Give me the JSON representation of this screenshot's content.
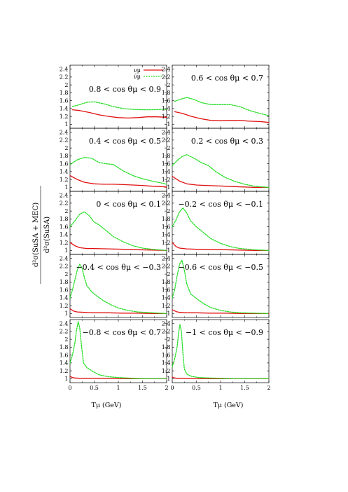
{
  "figure": {
    "ylabel_numerator": "d²σ(SuSA + MEC)",
    "ylabel_denominator": "d²σ(SuSA)",
    "xlabel": "Tμ (GeV)"
  },
  "legend": [
    {
      "label": "νμ",
      "color": "#e01010",
      "style": "solid"
    },
    {
      "label": "ν̄μ",
      "color": "#22dd22",
      "style": "dotted"
    }
  ],
  "chart_data": [
    {
      "type": "line",
      "panel": "0.8 < cos θμ < 0.9",
      "xlim": [
        0,
        2
      ],
      "ylim": [
        0.9,
        2.5
      ],
      "xlabel": "",
      "ylabel": "",
      "yticks": [
        "1",
        "1.2",
        "1.4",
        "1.6",
        "1.8",
        "2",
        "2.2",
        "2.4"
      ],
      "xticks": [],
      "series": [
        {
          "name": "νμ",
          "color": "#e01010",
          "dash": "",
          "x": [
            0.05,
            0.2,
            0.4,
            0.6,
            0.8,
            1.0,
            1.2,
            1.4,
            1.6,
            1.8,
            2.0
          ],
          "y": [
            1.37,
            1.35,
            1.3,
            1.24,
            1.2,
            1.17,
            1.16,
            1.17,
            1.19,
            1.19,
            1.18
          ]
        },
        {
          "name": "ν̄μ",
          "color": "#22dd22",
          "dash": "2,1.5",
          "x": [
            0.05,
            0.2,
            0.35,
            0.5,
            0.7,
            0.9,
            1.1,
            1.3,
            1.5,
            1.7,
            1.9,
            2.0
          ],
          "y": [
            1.45,
            1.5,
            1.56,
            1.57,
            1.52,
            1.45,
            1.4,
            1.38,
            1.37,
            1.37,
            1.38,
            1.38
          ]
        }
      ]
    },
    {
      "type": "line",
      "panel": "0.6 < cos θμ < 0.7",
      "xlim": [
        0,
        2
      ],
      "ylim": [
        0.9,
        2.5
      ],
      "xlabel": "",
      "ylabel": "",
      "yticks": [
        "1",
        "1.2",
        "1.4",
        "1.6",
        "1.8",
        "2",
        "2.2",
        "2.4"
      ],
      "xticks": [],
      "series": [
        {
          "name": "νμ",
          "color": "#e01010",
          "dash": "",
          "x": [
            0.05,
            0.2,
            0.4,
            0.6,
            0.8,
            1.0,
            1.2,
            1.4,
            1.6,
            1.8,
            2.0
          ],
          "y": [
            1.32,
            1.28,
            1.2,
            1.14,
            1.1,
            1.09,
            1.1,
            1.1,
            1.08,
            1.07,
            1.05
          ]
        },
        {
          "name": "ν̄μ",
          "color": "#22dd22",
          "dash": "2,1.5",
          "x": [
            0.05,
            0.15,
            0.3,
            0.45,
            0.6,
            0.8,
            1.0,
            1.2,
            1.4,
            1.6,
            1.8,
            2.0
          ],
          "y": [
            1.58,
            1.63,
            1.68,
            1.63,
            1.55,
            1.5,
            1.5,
            1.5,
            1.45,
            1.35,
            1.28,
            1.22
          ]
        }
      ]
    },
    {
      "type": "line",
      "panel": "0.4 < cos θμ < 0.5",
      "xlim": [
        0,
        2
      ],
      "ylim": [
        0.9,
        2.5
      ],
      "xlabel": "",
      "ylabel": "",
      "yticks": [
        "1",
        "1.2",
        "1.4",
        "1.6",
        "1.8",
        "2",
        "2.2",
        "2.4"
      ],
      "xticks": [],
      "series": [
        {
          "name": "νμ",
          "color": "#e01010",
          "dash": "",
          "x": [
            0.0,
            0.15,
            0.3,
            0.5,
            0.7,
            0.9,
            1.1,
            1.3,
            1.5,
            1.7,
            1.9,
            2.0
          ],
          "y": [
            1.3,
            1.2,
            1.13,
            1.09,
            1.08,
            1.08,
            1.07,
            1.06,
            1.05,
            1.03,
            1.02,
            1.01
          ]
        },
        {
          "name": "ν̄μ",
          "color": "#22dd22",
          "dash": "2,1.5",
          "x": [
            0.0,
            0.15,
            0.3,
            0.45,
            0.6,
            0.75,
            0.9,
            1.1,
            1.3,
            1.5,
            1.7,
            1.9,
            2.0
          ],
          "y": [
            1.58,
            1.7,
            1.76,
            1.74,
            1.63,
            1.6,
            1.58,
            1.42,
            1.3,
            1.22,
            1.16,
            1.11,
            1.08
          ]
        }
      ]
    },
    {
      "type": "line",
      "panel": "0.2 < cos θμ < 0.3",
      "xlim": [
        0,
        2
      ],
      "ylim": [
        0.9,
        2.5
      ],
      "xlabel": "",
      "ylabel": "",
      "yticks": [
        "1",
        "1.2",
        "1.4",
        "1.6",
        "1.8",
        "2",
        "2.2",
        "2.4"
      ],
      "xticks": [],
      "series": [
        {
          "name": "νμ",
          "color": "#e01010",
          "dash": "",
          "x": [
            0.0,
            0.15,
            0.3,
            0.5,
            0.7,
            0.9,
            1.1,
            1.3,
            1.5,
            1.7,
            2.0
          ],
          "y": [
            1.28,
            1.16,
            1.09,
            1.06,
            1.05,
            1.04,
            1.03,
            1.02,
            1.01,
            1.0,
            1.0
          ]
        },
        {
          "name": "ν̄μ",
          "color": "#22dd22",
          "dash": "2,1.5",
          "x": [
            0.0,
            0.1,
            0.2,
            0.3,
            0.45,
            0.6,
            0.75,
            0.9,
            1.1,
            1.3,
            1.5,
            1.7,
            2.0
          ],
          "y": [
            1.55,
            1.68,
            1.78,
            1.83,
            1.74,
            1.63,
            1.55,
            1.4,
            1.25,
            1.15,
            1.08,
            1.03,
            1.0
          ]
        }
      ]
    },
    {
      "type": "line",
      "panel": "0 < cos θμ < 0.1",
      "xlim": [
        0,
        2
      ],
      "ylim": [
        0.9,
        2.5
      ],
      "xlabel": "",
      "ylabel": "",
      "yticks": [
        "1",
        "1.2",
        "1.4",
        "1.6",
        "1.8",
        "2",
        "2.2",
        "2.4"
      ],
      "xticks": [],
      "series": [
        {
          "name": "νμ",
          "color": "#e01010",
          "dash": "",
          "x": [
            0.0,
            0.1,
            0.2,
            0.35,
            0.5,
            0.8,
            1.1,
            1.4,
            1.7,
            2.0
          ],
          "y": [
            1.2,
            1.12,
            1.07,
            1.05,
            1.05,
            1.04,
            1.03,
            1.02,
            1.01,
            1.0
          ]
        },
        {
          "name": "ν̄μ",
          "color": "#22dd22",
          "dash": "2,1.5",
          "x": [
            0.0,
            0.1,
            0.2,
            0.3,
            0.4,
            0.5,
            0.6,
            0.75,
            0.9,
            1.1,
            1.3,
            1.5,
            1.7,
            2.0
          ],
          "y": [
            1.6,
            1.75,
            1.92,
            1.98,
            1.88,
            1.72,
            1.65,
            1.5,
            1.35,
            1.22,
            1.12,
            1.06,
            1.03,
            1.0
          ]
        }
      ]
    },
    {
      "type": "line",
      "panel": "−0.2 < cos θμ < −0.1",
      "xlim": [
        0,
        2
      ],
      "ylim": [
        0.9,
        2.5
      ],
      "xlabel": "",
      "ylabel": "",
      "yticks": [
        "1",
        "1.2",
        "1.4",
        "1.6",
        "1.8",
        "2",
        "2.2",
        "2.4"
      ],
      "xticks": [],
      "series": [
        {
          "name": "νμ",
          "color": "#e01010",
          "dash": "",
          "x": [
            0.0,
            0.08,
            0.15,
            0.3,
            0.5,
            0.8,
            1.1,
            1.4,
            1.7,
            2.0
          ],
          "y": [
            1.2,
            1.1,
            1.06,
            1.04,
            1.03,
            1.02,
            1.02,
            1.01,
            1.0,
            1.0
          ]
        },
        {
          "name": "ν̄μ",
          "color": "#22dd22",
          "dash": "2,1.5",
          "x": [
            0.0,
            0.08,
            0.15,
            0.22,
            0.3,
            0.38,
            0.5,
            0.65,
            0.8,
            1.0,
            1.2,
            1.4,
            1.7,
            2.0
          ],
          "y": [
            1.6,
            1.78,
            1.98,
            2.08,
            1.95,
            1.75,
            1.6,
            1.45,
            1.3,
            1.18,
            1.1,
            1.05,
            1.02,
            1.0
          ]
        }
      ]
    },
    {
      "type": "line",
      "panel": "−0.4 < cos θμ < −0.3",
      "xlim": [
        0,
        2
      ],
      "ylim": [
        0.9,
        2.5
      ],
      "xlabel": "",
      "ylabel": "",
      "yticks": [
        "1",
        "1.2",
        "1.4",
        "1.6",
        "1.8",
        "2",
        "2.2",
        "2.4"
      ],
      "xticks": [],
      "series": [
        {
          "name": "νμ",
          "color": "#e01010",
          "dash": "",
          "x": [
            0.0,
            0.08,
            0.15,
            0.3,
            0.5,
            0.8,
            1.1,
            1.4,
            1.7,
            2.0
          ],
          "y": [
            1.12,
            1.06,
            1.04,
            1.03,
            1.02,
            1.02,
            1.01,
            1.01,
            1.0,
            1.0
          ]
        },
        {
          "name": "ν̄μ",
          "color": "#22dd22",
          "dash": "2,1.5",
          "x": [
            0.0,
            0.05,
            0.1,
            0.15,
            0.2,
            0.25,
            0.3,
            0.35,
            0.45,
            0.55,
            0.7,
            0.85,
            1.0,
            1.2,
            1.4,
            1.7,
            2.0
          ],
          "y": [
            1.4,
            1.6,
            1.85,
            2.1,
            2.25,
            2.15,
            1.9,
            1.7,
            1.55,
            1.45,
            1.32,
            1.22,
            1.14,
            1.08,
            1.04,
            1.02,
            1.0
          ]
        }
      ]
    },
    {
      "type": "line",
      "panel": "−0.6 < cos θμ < −0.5",
      "xlim": [
        0,
        2
      ],
      "ylim": [
        0.9,
        2.5
      ],
      "xlabel": "",
      "ylabel": "",
      "yticks": [
        "1",
        "1.2",
        "1.4",
        "1.6",
        "1.8",
        "2",
        "2.2",
        "2.4"
      ],
      "xticks": [],
      "series": [
        {
          "name": "νμ",
          "color": "#e01010",
          "dash": "",
          "x": [
            0.0,
            0.08,
            0.15,
            0.3,
            0.5,
            0.8,
            1.1,
            1.4,
            1.7,
            2.0
          ],
          "y": [
            1.1,
            1.05,
            1.03,
            1.02,
            1.02,
            1.01,
            1.01,
            1.0,
            1.0,
            1.0
          ]
        },
        {
          "name": "ν̄μ",
          "color": "#22dd22",
          "dash": "2,1.5",
          "x": [
            0.0,
            0.05,
            0.1,
            0.15,
            0.2,
            0.25,
            0.3,
            0.38,
            0.5,
            0.65,
            0.8,
            1.0,
            1.2,
            1.4,
            1.7,
            2.0
          ],
          "y": [
            1.4,
            1.6,
            1.95,
            2.25,
            2.35,
            2.1,
            1.75,
            1.5,
            1.38,
            1.25,
            1.15,
            1.08,
            1.04,
            1.02,
            1.01,
            1.0
          ]
        }
      ]
    },
    {
      "type": "line",
      "panel": "−0.8 < cos θμ < 0.7",
      "xlim": [
        0,
        2
      ],
      "ylim": [
        0.9,
        2.5
      ],
      "xlabel": "",
      "ylabel": "",
      "yticks": [
        "1",
        "1.2",
        "1.4",
        "1.6",
        "1.8",
        "2",
        "2.2",
        "2.4"
      ],
      "xticks": [
        "0",
        "0.5",
        "1",
        "1.5",
        "2"
      ],
      "series": [
        {
          "name": "νμ",
          "color": "#e01010",
          "dash": "",
          "x": [
            0.0,
            0.05,
            0.1,
            0.2,
            0.4,
            0.7,
            1.0,
            1.4,
            1.7,
            2.0
          ],
          "y": [
            1.06,
            1.03,
            1.02,
            1.01,
            1.01,
            1.01,
            1.0,
            1.0,
            1.0,
            1.0
          ]
        },
        {
          "name": "ν̄μ",
          "color": "#22dd22",
          "dash": "2,1.5",
          "x": [
            0.0,
            0.05,
            0.1,
            0.13,
            0.17,
            0.2,
            0.24,
            0.28,
            0.35,
            0.45,
            0.6,
            0.8,
            1.0,
            1.3,
            1.6,
            2.0
          ],
          "y": [
            1.4,
            1.6,
            1.9,
            2.2,
            2.45,
            2.3,
            1.8,
            1.4,
            1.28,
            1.2,
            1.1,
            1.05,
            1.03,
            1.01,
            1.0,
            1.0
          ]
        }
      ]
    },
    {
      "type": "line",
      "panel": "−1 < cos θμ < −0.9",
      "xlim": [
        0,
        2
      ],
      "ylim": [
        0.9,
        2.5
      ],
      "xlabel": "",
      "ylabel": "",
      "yticks": [
        "1",
        "1.2",
        "1.4",
        "1.6",
        "1.8",
        "2",
        "2.2",
        "2.4"
      ],
      "xticks": [
        "0",
        "0.5",
        "1",
        "1.5",
        "2"
      ],
      "series": [
        {
          "name": "νμ",
          "color": "#e01010",
          "dash": "",
          "x": [
            0.0,
            0.05,
            0.1,
            0.2,
            0.4,
            0.7,
            1.0,
            1.4,
            1.7,
            2.0
          ],
          "y": [
            1.04,
            1.02,
            1.01,
            1.01,
            1.0,
            1.0,
            1.0,
            1.0,
            1.0,
            1.0
          ]
        },
        {
          "name": "ν̄μ",
          "color": "#22dd22",
          "dash": "2,1.5",
          "x": [
            0.0,
            0.05,
            0.1,
            0.13,
            0.16,
            0.19,
            0.22,
            0.25,
            0.3,
            0.4,
            0.55,
            0.75,
            1.0,
            1.3,
            1.6,
            2.0
          ],
          "y": [
            1.3,
            1.5,
            1.8,
            2.15,
            2.38,
            2.2,
            1.65,
            1.25,
            1.12,
            1.06,
            1.03,
            1.02,
            1.01,
            1.0,
            1.0,
            1.0
          ]
        }
      ]
    }
  ]
}
